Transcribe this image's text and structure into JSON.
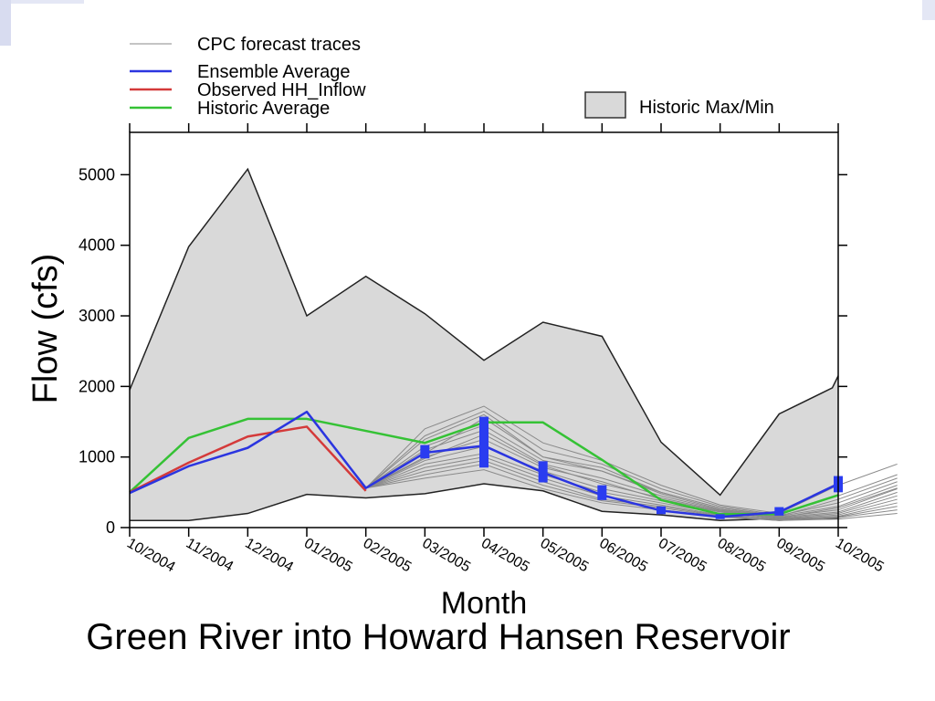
{
  "caption": "Green River into Howard Hansen Reservoir",
  "colors": {
    "band_fill": "#d9d9d9",
    "trace": "#8a8a8a",
    "ensemble": "#2b35e0",
    "observed": "#d43a3a",
    "historic": "#35c235",
    "box": "#2a3cf0"
  },
  "chart_data": {
    "type": "line",
    "title": "",
    "xlabel": "Month",
    "ylabel": "Flow (cfs)",
    "ylim": [
      0,
      5600
    ],
    "y_ticks": [
      0,
      1000,
      2000,
      3000,
      4000,
      5000
    ],
    "categories": [
      "10/2004",
      "11/2004",
      "12/2004",
      "01/2005",
      "02/2005",
      "03/2005",
      "04/2005",
      "05/2005",
      "06/2005",
      "07/2005",
      "08/2005",
      "09/2005",
      "10/2005"
    ],
    "legend": [
      {
        "key": "traces",
        "label": "CPC forecast traces",
        "kind": "line"
      },
      {
        "key": "ensemble",
        "label": "Ensemble Average",
        "kind": "line"
      },
      {
        "key": "observed",
        "label": "Observed HH_Inflow",
        "kind": "line"
      },
      {
        "key": "historic",
        "label": "Historic Average",
        "kind": "line"
      },
      {
        "key": "band",
        "label": "Historic Max/Min",
        "kind": "box"
      }
    ],
    "historic_max": [
      1950,
      3980,
      5080,
      3000,
      3560,
      3030,
      2370,
      2910,
      2710,
      1210,
      460,
      1610,
      1980,
      2150
    ],
    "historic_min": [
      100,
      100,
      200,
      470,
      420,
      480,
      620,
      520,
      230,
      180,
      100,
      130,
      130,
      130
    ],
    "historic_max_x": [
      0,
      1,
      2,
      3,
      4,
      5,
      6,
      7,
      8,
      9,
      10,
      11,
      11.9,
      12
    ],
    "historic_min_x": [
      0,
      1,
      2,
      3,
      4,
      5,
      6,
      7,
      8,
      9,
      10,
      11,
      11.9,
      12
    ],
    "series": [
      {
        "name": "Historic Average",
        "key": "historic",
        "x": [
          0,
          1,
          2,
          3,
          4,
          5,
          6,
          7,
          8,
          9,
          10,
          11,
          12
        ],
        "values": [
          500,
          1270,
          1540,
          1540,
          1370,
          1200,
          1490,
          1490,
          960,
          390,
          190,
          190,
          460
        ]
      },
      {
        "name": "Observed HH_Inflow",
        "key": "observed",
        "x": [
          0,
          1,
          2,
          3,
          4
        ],
        "values": [
          500,
          920,
          1290,
          1430,
          520
        ]
      },
      {
        "name": "Ensemble Average",
        "key": "ensemble",
        "x": [
          0,
          1,
          2,
          3,
          4,
          5,
          6,
          7,
          8,
          9,
          10,
          11,
          12
        ],
        "values": [
          490,
          870,
          1130,
          1640,
          560,
          1060,
          1160,
          780,
          460,
          240,
          150,
          220,
          620
        ]
      }
    ],
    "forecast_traces": [
      [
        560,
        1400,
        1720,
        1200,
        950,
        600,
        320,
        200,
        600,
        900
      ],
      [
        560,
        1300,
        1650,
        1100,
        900,
        550,
        300,
        180,
        450,
        750
      ],
      [
        560,
        1250,
        1600,
        1000,
        850,
        500,
        280,
        170,
        350,
        650
      ],
      [
        560,
        1150,
        1450,
        950,
        800,
        480,
        260,
        160,
        300,
        600
      ],
      [
        560,
        1100,
        1380,
        900,
        700,
        450,
        250,
        150,
        250,
        550
      ],
      [
        560,
        1000,
        1250,
        850,
        650,
        400,
        230,
        140,
        220,
        500
      ],
      [
        560,
        950,
        1150,
        800,
        550,
        380,
        220,
        130,
        200,
        450
      ],
      [
        560,
        900,
        1050,
        750,
        500,
        350,
        200,
        120,
        180,
        400
      ],
      [
        560,
        850,
        1000,
        700,
        450,
        320,
        180,
        110,
        160,
        350
      ],
      [
        560,
        800,
        950,
        650,
        400,
        300,
        170,
        100,
        150,
        300
      ],
      [
        560,
        750,
        900,
        600,
        380,
        280,
        160,
        100,
        140,
        250
      ],
      [
        560,
        700,
        820,
        550,
        350,
        250,
        150,
        100,
        120,
        200
      ],
      [
        560,
        1050,
        1550,
        1000,
        800,
        500,
        280,
        160,
        400,
        700
      ],
      [
        560,
        980,
        1320,
        880,
        620,
        420,
        240,
        140,
        280,
        560
      ]
    ],
    "forecast_trace_start_x": 4,
    "boxes": [
      {
        "x": 5,
        "low": 980,
        "high": 1170
      },
      {
        "x": 6,
        "low": 850,
        "high": 1570
      },
      {
        "x": 7,
        "low": 640,
        "high": 940
      },
      {
        "x": 8,
        "low": 390,
        "high": 600
      },
      {
        "x": 9,
        "low": 190,
        "high": 300
      },
      {
        "x": 10,
        "low": 120,
        "high": 190
      },
      {
        "x": 11,
        "low": 170,
        "high": 290
      },
      {
        "x": 12,
        "low": 500,
        "high": 730
      }
    ]
  }
}
